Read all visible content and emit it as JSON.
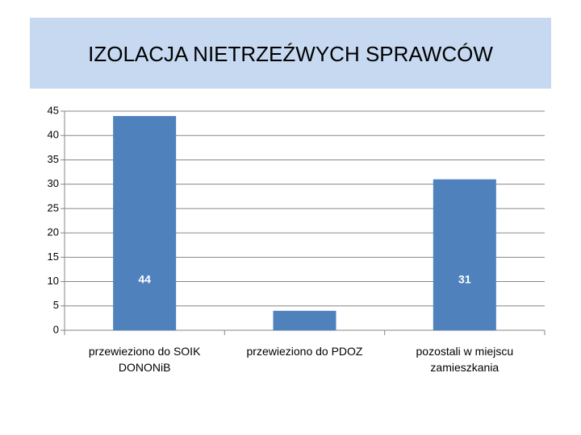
{
  "chart_data": {
    "type": "bar",
    "title": "IZOLACJA NIETRZEŹWYCH SPRAWCÓW",
    "categories": [
      "przewieziono do SOIK DONONiB",
      "przewieziono do PDOZ",
      "pozostali w miejscu zamieszkania"
    ],
    "values": [
      44,
      4,
      31
    ],
    "value_labels": [
      "44",
      null,
      "31"
    ],
    "color": "#4f81bd",
    "ylim": [
      0,
      45
    ],
    "yticks": [
      0,
      5,
      10,
      15,
      20,
      25,
      30,
      35,
      40,
      45
    ],
    "grid": true
  }
}
